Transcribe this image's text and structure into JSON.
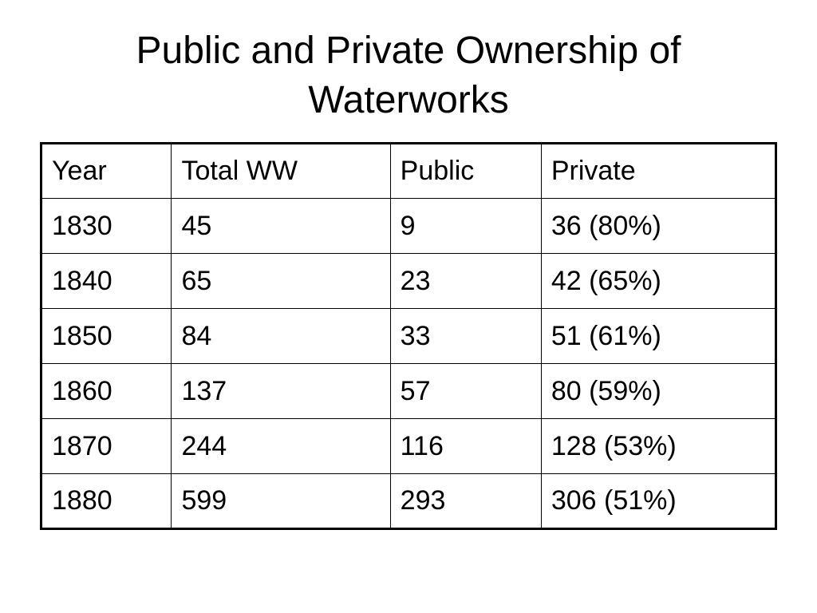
{
  "slide": {
    "title_line1": "Public and Private Ownership of",
    "title_line2": "Waterworks"
  },
  "table": {
    "headers": [
      "Year",
      "Total WW",
      "Public",
      "Private"
    ],
    "rows": [
      [
        "1830",
        "45",
        "9",
        "36 (80%)"
      ],
      [
        "1840",
        "65",
        "23",
        "42 (65%)"
      ],
      [
        "1850",
        "84",
        "33",
        "51 (61%)"
      ],
      [
        "1860",
        "137",
        "57",
        "80 (59%)"
      ],
      [
        "1870",
        "244",
        "116",
        "128 (53%)"
      ],
      [
        "1880",
        "599",
        "293",
        "306 (51%)"
      ]
    ]
  }
}
